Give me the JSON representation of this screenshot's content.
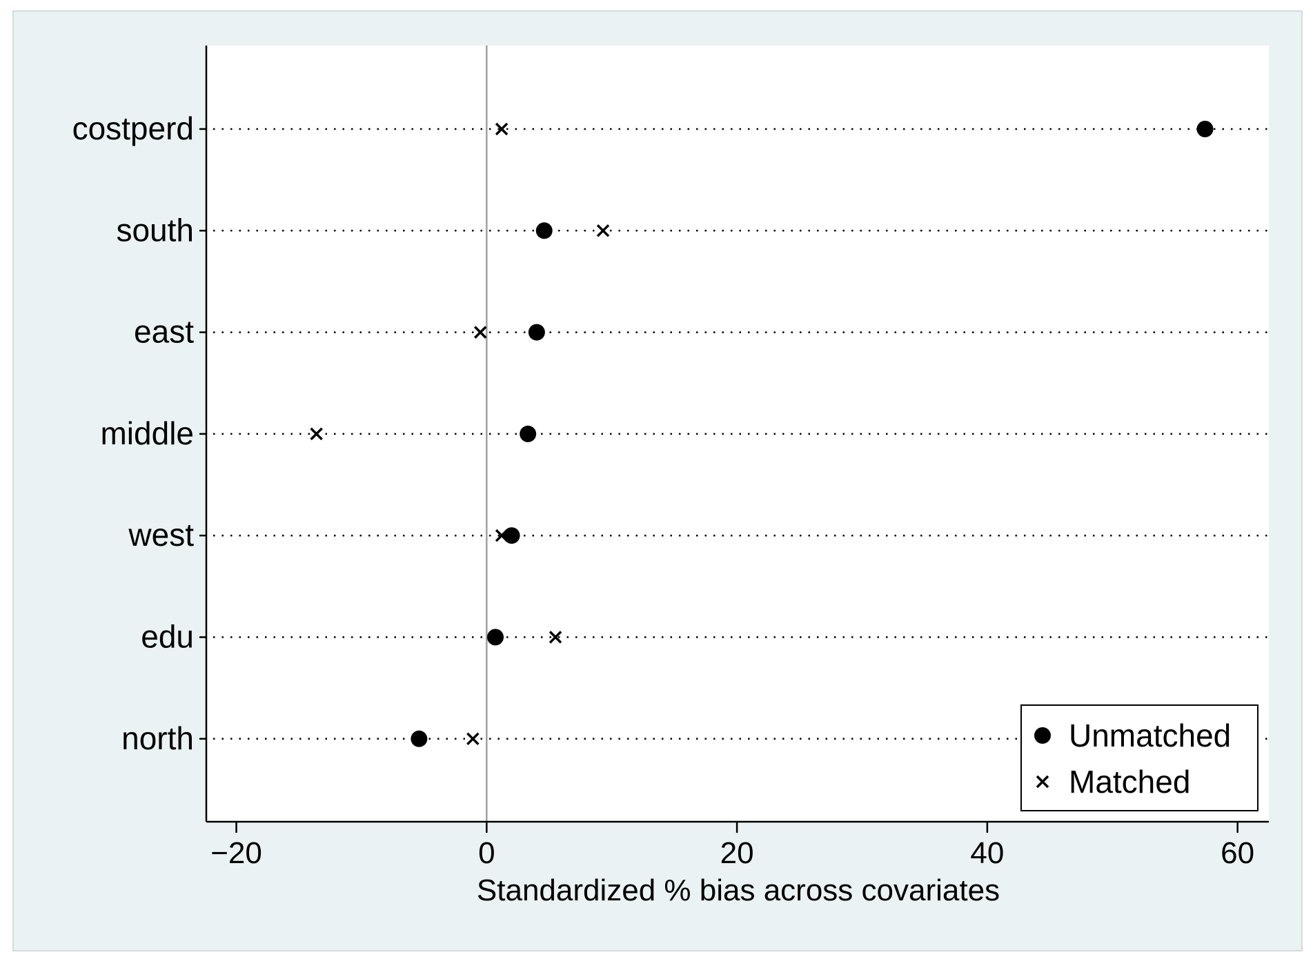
{
  "chart_data": {
    "type": "scatter",
    "title": "",
    "xlabel": "Standardized % bias across covariates",
    "ylabel": "",
    "xlim": [
      -22.4,
      62.5
    ],
    "xticks": [
      "−20",
      "0",
      "20",
      "40",
      "60"
    ],
    "xtick_values": [
      -20,
      0,
      20,
      40,
      60
    ],
    "categories": [
      "costperd",
      "south",
      "east",
      "middle",
      "west",
      "edu",
      "north"
    ],
    "series": [
      {
        "name": "Unmatched",
        "marker": "circle",
        "values": [
          57.4,
          4.6,
          4.0,
          3.3,
          2.0,
          0.7,
          -5.4
        ]
      },
      {
        "name": "Matched",
        "marker": "x",
        "values": [
          1.2,
          9.3,
          -0.5,
          -13.6,
          1.2,
          5.5,
          -1.1
        ]
      }
    ],
    "zero_line": 0,
    "grid": "dotted horizontal lines at each category",
    "legend_position": "bottom-right",
    "colors": {
      "outer_background": "#eaf2f3",
      "plot_background": "#ffffff",
      "marker": "#000000",
      "zero_line": "#a0a0a0"
    }
  }
}
